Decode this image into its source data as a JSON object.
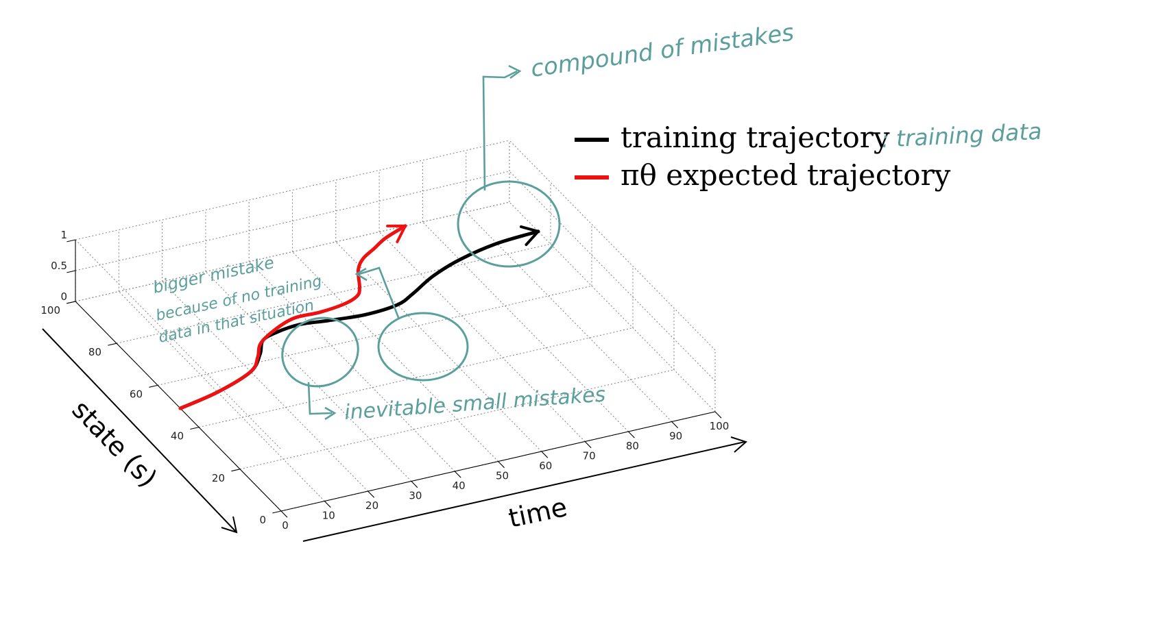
{
  "chart_data": {
    "type": "line",
    "projection": "3d",
    "xlabel": "time",
    "ylabel": "state (s)",
    "xlim": [
      0,
      100
    ],
    "ylim": [
      0,
      100
    ],
    "zlim": [
      0,
      1
    ],
    "grid": true,
    "legend_position": "top-right",
    "x_ticks": [
      "0",
      "10",
      "20",
      "30",
      "40",
      "50",
      "60",
      "70",
      "80",
      "90",
      "100"
    ],
    "y_ticks": [
      "0",
      "20",
      "40",
      "60",
      "80",
      "100"
    ],
    "z_ticks": [
      "0",
      "0.5",
      "1"
    ],
    "series": [
      {
        "name": "training trajectory",
        "color": "#000000",
        "x": [
          0,
          10,
          20,
          25,
          28,
          32,
          38,
          44,
          52,
          60,
          65,
          72,
          80,
          90,
          100
        ],
        "y": [
          49,
          52,
          57,
          63,
          68,
          70,
          71,
          70,
          69,
          70,
          73,
          78,
          82,
          85,
          86
        ]
      },
      {
        "name": "πθ expected trajectory",
        "color": "#ee1111",
        "x": [
          0,
          10,
          20,
          24,
          27,
          32,
          38,
          44,
          50,
          54,
          56,
          59,
          62,
          66,
          70,
          76
        ],
        "y": [
          49,
          52,
          57,
          62,
          67,
          71,
          74,
          74,
          75,
          77,
          80,
          87,
          91,
          94,
          97,
          100
        ]
      }
    ]
  },
  "annotations": {
    "legend_note": ": training data",
    "compound": "compound of mistakes",
    "bigger_line1": "bigger mistake",
    "bigger_line2": "because of no training",
    "bigger_line3": "data in that situation",
    "small": "inevitable small mistakes"
  },
  "colors": {
    "annotation": "#5a9f9c"
  }
}
